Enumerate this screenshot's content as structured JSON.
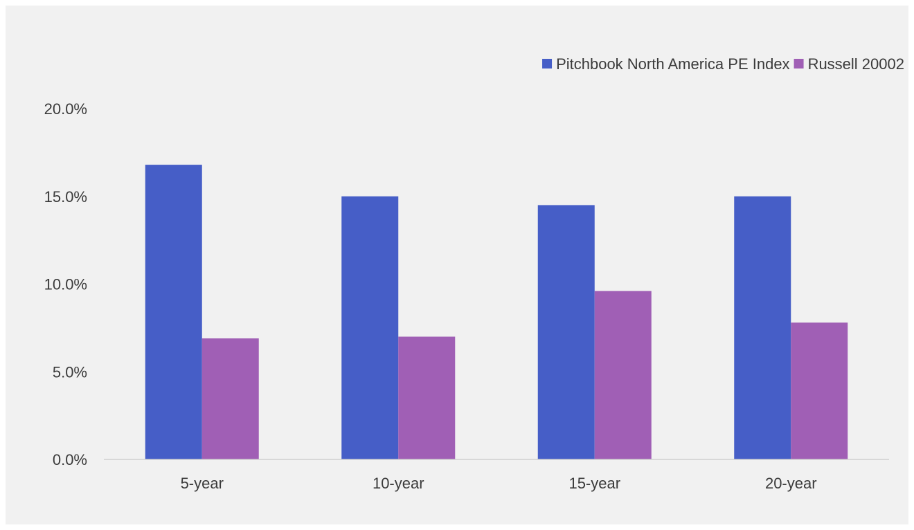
{
  "chart_data": {
    "type": "bar",
    "categories": [
      "5-year",
      "10-year",
      "15-year",
      "20-year"
    ],
    "series": [
      {
        "name": "Pitchbook North America PE Index",
        "color": "#465ec7",
        "values": [
          16.8,
          15.0,
          14.5,
          15.0
        ]
      },
      {
        "name": "Russell 20002",
        "color": "#a05fb5",
        "values": [
          6.9,
          7.0,
          9.6,
          7.8
        ]
      }
    ],
    "yticks": [
      0,
      5,
      10,
      15,
      20
    ],
    "ytick_labels": [
      "0.0%",
      "5.0%",
      "10.0%",
      "15.0%",
      "20.0%"
    ],
    "ylim": [
      0,
      20
    ],
    "title": "",
    "xlabel": "",
    "ylabel": "",
    "legend_position": "top-right",
    "grid": false
  }
}
